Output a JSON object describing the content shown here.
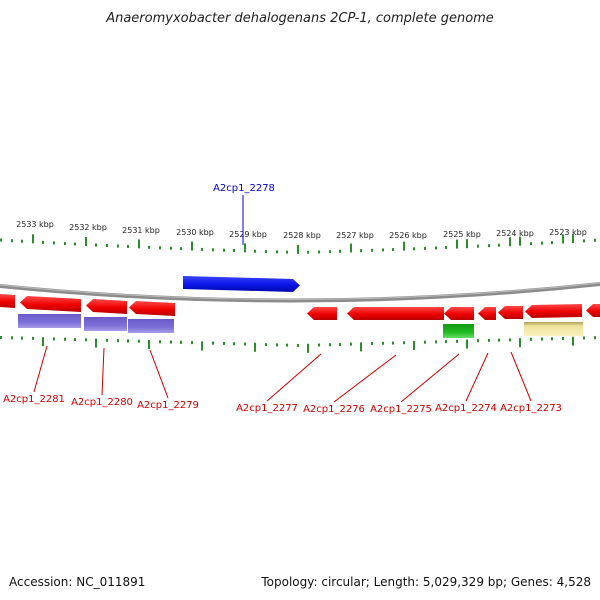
{
  "title": "Anaeromyxobacter dehalogenans 2CP-1, complete genome",
  "footer": {
    "accession": "Accession: NC_011891",
    "summary": "Topology: circular; Length: 5,029,329 bp; Genes: 4,528"
  },
  "colors": {
    "backbone": "#8c8c8c",
    "tick_major": "#2e8b2e",
    "tick_minor": "#2e8b2e",
    "gene_red": "#ee0000",
    "gene_blue": "#0a14e6",
    "gene_purple": "#7a6ad0",
    "gene_green": "#22bb22",
    "gene_yellow": "#efe39a",
    "label_red": "#cc0000",
    "label_blue": "#0000cc"
  },
  "chart_data": {
    "type": "genome-map",
    "ruler_labels": [
      "2533 kbp",
      "2532 kbp",
      "2531 kbp",
      "2530 kbp",
      "2529 kbp",
      "2528 kbp",
      "2527 kbp",
      "2526 kbp",
      "2525 kbp",
      "2524 kbp",
      "2523 kbp"
    ],
    "gene_labels": [
      {
        "id": "A2cp1_2278",
        "strand": "+",
        "color": "blue"
      },
      {
        "id": "A2cp1_2281",
        "strand": "-",
        "color": "red"
      },
      {
        "id": "A2cp1_2280",
        "strand": "-",
        "color": "red"
      },
      {
        "id": "A2cp1_2279",
        "strand": "-",
        "color": "red"
      },
      {
        "id": "A2cp1_2277",
        "strand": "-",
        "color": "red"
      },
      {
        "id": "A2cp1_2276",
        "strand": "-",
        "color": "red"
      },
      {
        "id": "A2cp1_2275",
        "strand": "-",
        "color": "red"
      },
      {
        "id": "A2cp1_2274",
        "strand": "-",
        "color": "red"
      },
      {
        "id": "A2cp1_2273",
        "strand": "-",
        "color": "red"
      }
    ]
  }
}
